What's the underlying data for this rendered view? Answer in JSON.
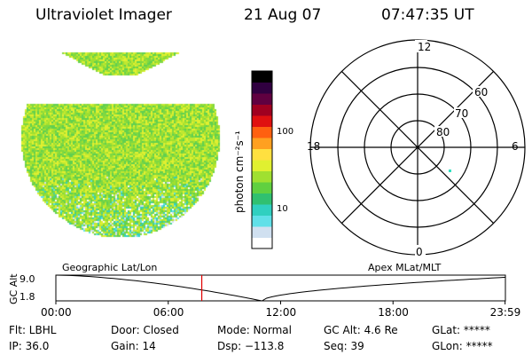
{
  "header": {
    "title": "Ultraviolet Imager",
    "date": "21 Aug 07",
    "time": "07:47:35 UT"
  },
  "colorbar": {
    "label": "photon cm⁻²s⁻¹",
    "tick_100": "100",
    "tick_10": "10",
    "colors": [
      "#ffffff",
      "#d0e0f0",
      "#60e0e8",
      "#30d0c0",
      "#30c070",
      "#60d040",
      "#a0e030",
      "#e0f030",
      "#ffe040",
      "#ffa020",
      "#ff6010",
      "#e01010",
      "#a00020",
      "#600040",
      "#300040",
      "#000000"
    ]
  },
  "polar": {
    "hours": {
      "top": "12",
      "bottom": "0",
      "left": "18",
      "right": "6"
    },
    "lats": {
      "l60": "60",
      "l70": "70",
      "l80": "80"
    }
  },
  "timeline": {
    "left_label": "Geographic Lat/Lon",
    "right_label": "Apex MLat/MLT",
    "y_axis": "GC Alt",
    "y_max": "9.0",
    "y_min": "1.8",
    "x_ticks": [
      "00:00",
      "06:00",
      "12:00",
      "18:00",
      "23:59"
    ],
    "marker_hour": 7.79
  },
  "status": {
    "flt": "Flt: LBHL",
    "ip": "IP: 36.0",
    "door": "Door: Closed",
    "gain": "Gain: 14",
    "mode": "Mode: Normal",
    "dsp": "Dsp: −113.8",
    "gcalt": "GC Alt: 4.6 Re",
    "seq": "Seq: 39",
    "glat": "GLat: *****",
    "glon": "GLon: *****"
  }
}
